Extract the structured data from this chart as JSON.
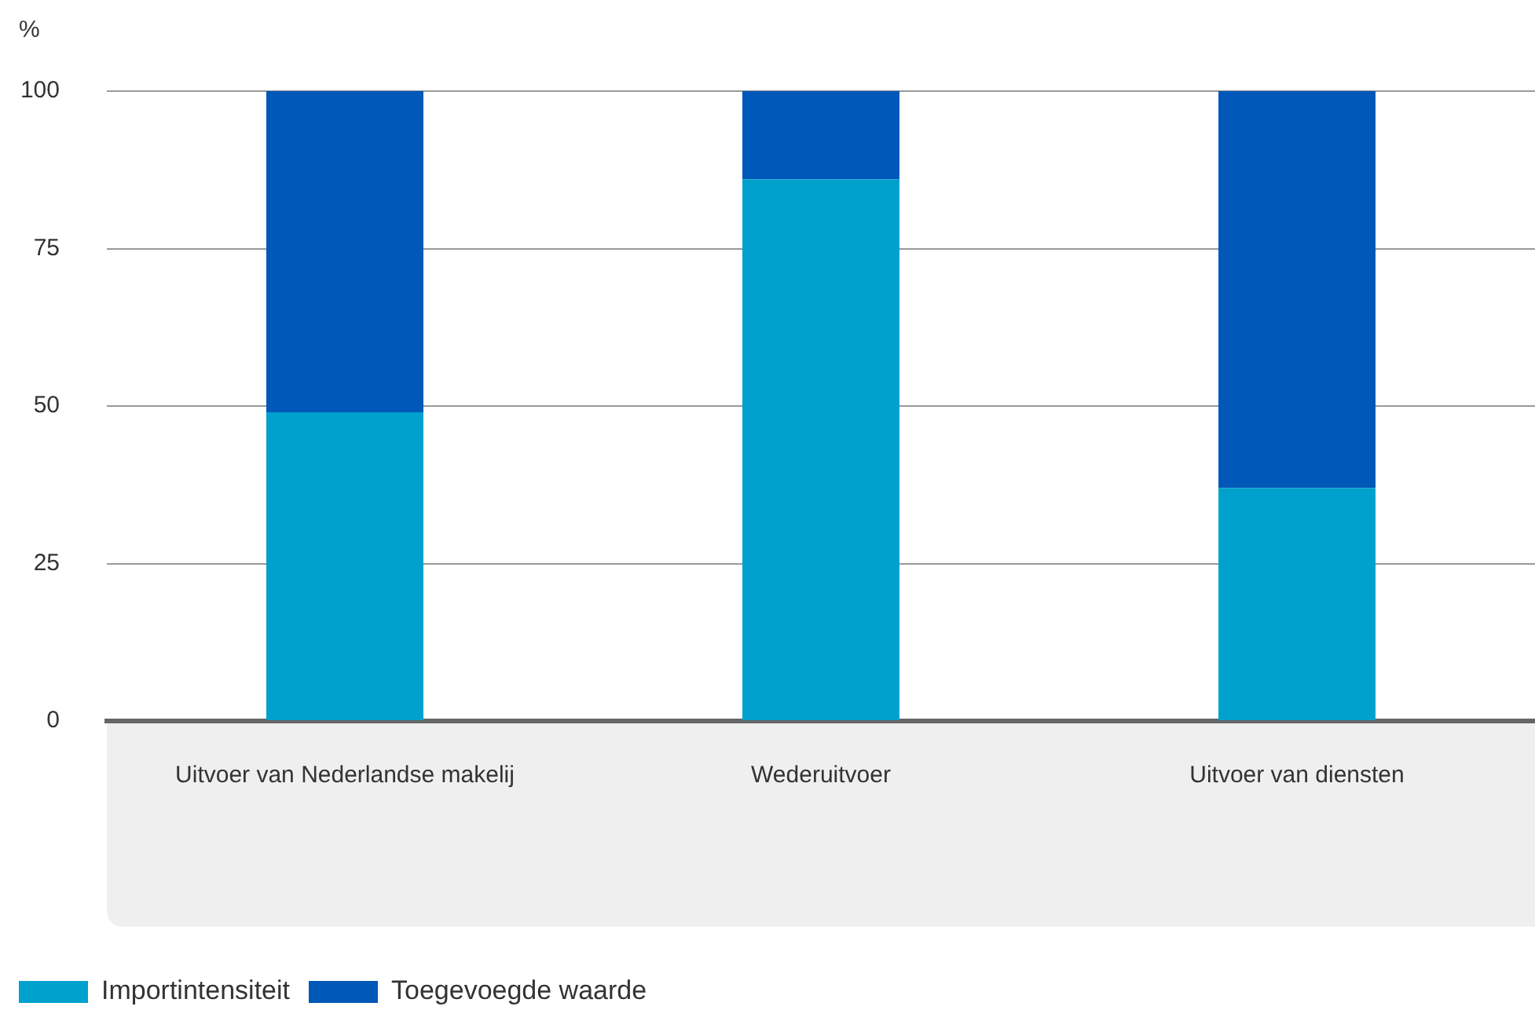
{
  "chart_data": {
    "type": "bar",
    "ylabel": "%",
    "categories": [
      "Uitvoer van Nederlandse makelij",
      "Wederuitvoer",
      "Uitvoer van diensten"
    ],
    "series": [
      {
        "name": "Importintensiteit",
        "color": "#00a1cd",
        "values": [
          49,
          86,
          37
        ]
      },
      {
        "name": "Toegevoegde waarde",
        "color": "#0058b8",
        "values": [
          51,
          14,
          63
        ]
      }
    ],
    "stacked": true,
    "ylim": [
      0,
      100
    ],
    "yticks": [
      0,
      25,
      50,
      75,
      100
    ],
    "grid": "y",
    "legend": "bottom left"
  }
}
